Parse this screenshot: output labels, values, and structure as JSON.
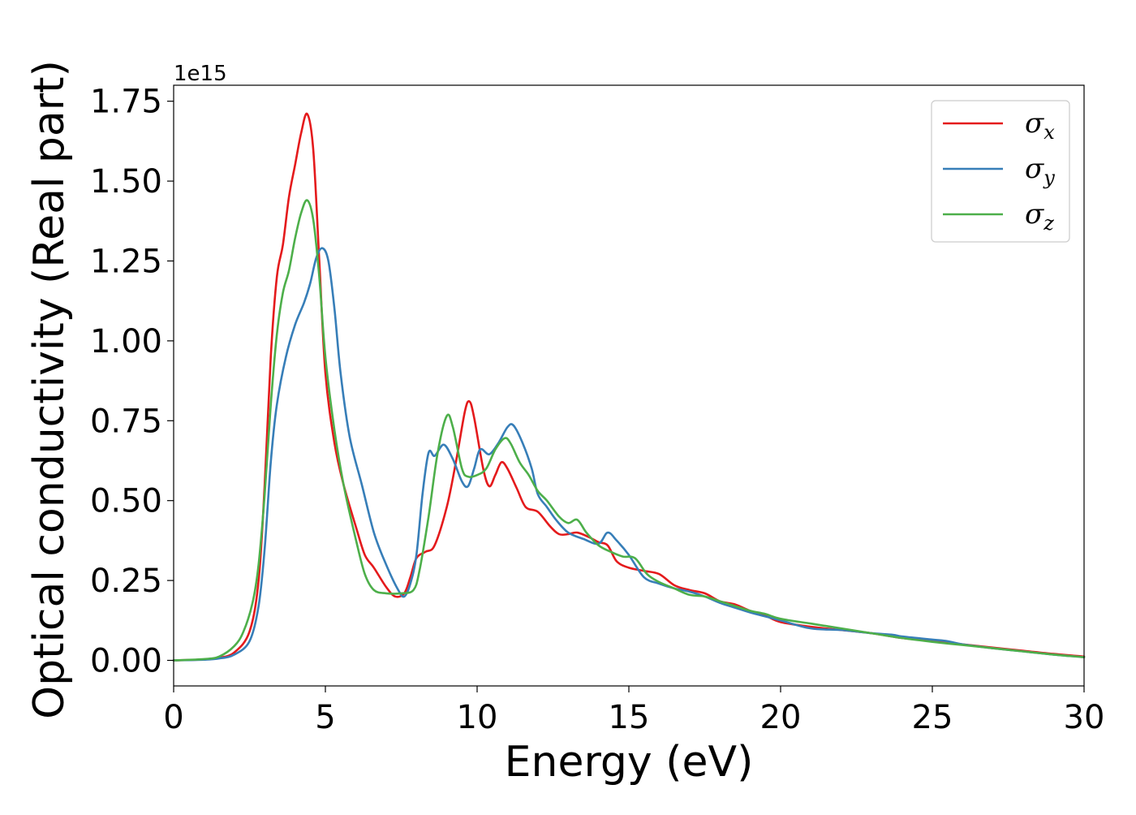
{
  "chart_data": {
    "type": "line",
    "title": "",
    "xlabel": "Energy (eV)",
    "ylabel": "Optical conductivity (Real part)",
    "y_offset_text": "1e15",
    "xlim": [
      0,
      30
    ],
    "ylim": [
      -0.08,
      1.8
    ],
    "x_ticks": [
      "0",
      "5",
      "10",
      "15",
      "20",
      "25",
      "30"
    ],
    "y_ticks": [
      "0.00",
      "0.25",
      "0.50",
      "0.75",
      "1.00",
      "1.25",
      "1.50",
      "1.75"
    ],
    "grid": false,
    "legend_position": "top-right",
    "series": [
      {
        "name": "σx",
        "legend_symbol": "σ",
        "legend_subscript": "x",
        "color": "#e41a1c",
        "points": [
          [
            0,
            0
          ],
          [
            1,
            0.003
          ],
          [
            1.5,
            0.008
          ],
          [
            2,
            0.025
          ],
          [
            2.5,
            0.09
          ],
          [
            2.8,
            0.25
          ],
          [
            3,
            0.55
          ],
          [
            3.2,
            0.95
          ],
          [
            3.4,
            1.2
          ],
          [
            3.6,
            1.3
          ],
          [
            3.8,
            1.45
          ],
          [
            4,
            1.55
          ],
          [
            4.2,
            1.65
          ],
          [
            4.4,
            1.71
          ],
          [
            4.6,
            1.6
          ],
          [
            4.8,
            1.25
          ],
          [
            5,
            0.9
          ],
          [
            5.3,
            0.68
          ],
          [
            5.6,
            0.55
          ],
          [
            6,
            0.42
          ],
          [
            6.3,
            0.33
          ],
          [
            6.6,
            0.29
          ],
          [
            7,
            0.23
          ],
          [
            7.3,
            0.2
          ],
          [
            7.6,
            0.21
          ],
          [
            7.8,
            0.26
          ],
          [
            8,
            0.32
          ],
          [
            8.3,
            0.34
          ],
          [
            8.6,
            0.36
          ],
          [
            9,
            0.48
          ],
          [
            9.3,
            0.62
          ],
          [
            9.6,
            0.78
          ],
          [
            9.75,
            0.81
          ],
          [
            9.9,
            0.76
          ],
          [
            10.2,
            0.6
          ],
          [
            10.4,
            0.545
          ],
          [
            10.6,
            0.58
          ],
          [
            10.8,
            0.62
          ],
          [
            11,
            0.6
          ],
          [
            11.3,
            0.54
          ],
          [
            11.6,
            0.48
          ],
          [
            12,
            0.465
          ],
          [
            12.4,
            0.42
          ],
          [
            12.7,
            0.395
          ],
          [
            13,
            0.395
          ],
          [
            13.3,
            0.4
          ],
          [
            13.7,
            0.385
          ],
          [
            14,
            0.37
          ],
          [
            14.3,
            0.36
          ],
          [
            14.6,
            0.31
          ],
          [
            15,
            0.29
          ],
          [
            15.5,
            0.28
          ],
          [
            16,
            0.27
          ],
          [
            16.5,
            0.235
          ],
          [
            17,
            0.22
          ],
          [
            17.5,
            0.21
          ],
          [
            18,
            0.185
          ],
          [
            18.5,
            0.175
          ],
          [
            19,
            0.155
          ],
          [
            19.5,
            0.14
          ],
          [
            20,
            0.12
          ],
          [
            21,
            0.105
          ],
          [
            22,
            0.095
          ],
          [
            23,
            0.085
          ],
          [
            24,
            0.07
          ],
          [
            25,
            0.06
          ],
          [
            26,
            0.05
          ],
          [
            27,
            0.04
          ],
          [
            28,
            0.03
          ],
          [
            29,
            0.02
          ],
          [
            30,
            0.012
          ]
        ]
      },
      {
        "name": "σy",
        "legend_symbol": "σ",
        "legend_subscript": "y",
        "color": "#377eb8",
        "points": [
          [
            0,
            0
          ],
          [
            1,
            0.002
          ],
          [
            1.5,
            0.006
          ],
          [
            2,
            0.018
          ],
          [
            2.5,
            0.06
          ],
          [
            2.8,
            0.17
          ],
          [
            3,
            0.35
          ],
          [
            3.2,
            0.62
          ],
          [
            3.4,
            0.8
          ],
          [
            3.7,
            0.95
          ],
          [
            4,
            1.05
          ],
          [
            4.3,
            1.12
          ],
          [
            4.5,
            1.18
          ],
          [
            4.7,
            1.26
          ],
          [
            4.9,
            1.29
          ],
          [
            5.1,
            1.25
          ],
          [
            5.3,
            1.1
          ],
          [
            5.5,
            0.9
          ],
          [
            5.8,
            0.7
          ],
          [
            6.2,
            0.55
          ],
          [
            6.6,
            0.4
          ],
          [
            7,
            0.3
          ],
          [
            7.4,
            0.22
          ],
          [
            7.6,
            0.2
          ],
          [
            7.8,
            0.24
          ],
          [
            8,
            0.33
          ],
          [
            8.2,
            0.52
          ],
          [
            8.4,
            0.65
          ],
          [
            8.6,
            0.64
          ],
          [
            8.9,
            0.675
          ],
          [
            9.2,
            0.63
          ],
          [
            9.5,
            0.56
          ],
          [
            9.7,
            0.545
          ],
          [
            9.9,
            0.6
          ],
          [
            10.1,
            0.66
          ],
          [
            10.4,
            0.645
          ],
          [
            10.7,
            0.68
          ],
          [
            11,
            0.73
          ],
          [
            11.2,
            0.735
          ],
          [
            11.5,
            0.68
          ],
          [
            11.8,
            0.6
          ],
          [
            12,
            0.52
          ],
          [
            12.3,
            0.48
          ],
          [
            12.6,
            0.44
          ],
          [
            13,
            0.4
          ],
          [
            13.5,
            0.38
          ],
          [
            14,
            0.365
          ],
          [
            14.3,
            0.4
          ],
          [
            14.6,
            0.375
          ],
          [
            15,
            0.33
          ],
          [
            15.5,
            0.26
          ],
          [
            16,
            0.24
          ],
          [
            16.5,
            0.225
          ],
          [
            17,
            0.215
          ],
          [
            17.5,
            0.2
          ],
          [
            18,
            0.18
          ],
          [
            18.5,
            0.165
          ],
          [
            19,
            0.15
          ],
          [
            20,
            0.125
          ],
          [
            21,
            0.1
          ],
          [
            22,
            0.095
          ],
          [
            23,
            0.085
          ],
          [
            23.7,
            0.08
          ],
          [
            24,
            0.075
          ],
          [
            25,
            0.065
          ],
          [
            25.5,
            0.06
          ],
          [
            26,
            0.05
          ],
          [
            27,
            0.038
          ],
          [
            28,
            0.028
          ],
          [
            29,
            0.018
          ],
          [
            30,
            0.01
          ]
        ]
      },
      {
        "name": "σz",
        "legend_symbol": "σ",
        "legend_subscript": "z",
        "color": "#4daf4a",
        "points": [
          [
            0,
            0
          ],
          [
            1,
            0.004
          ],
          [
            1.5,
            0.012
          ],
          [
            2,
            0.045
          ],
          [
            2.3,
            0.09
          ],
          [
            2.6,
            0.18
          ],
          [
            2.8,
            0.3
          ],
          [
            3,
            0.52
          ],
          [
            3.2,
            0.8
          ],
          [
            3.4,
            1.02
          ],
          [
            3.6,
            1.15
          ],
          [
            3.8,
            1.22
          ],
          [
            4,
            1.32
          ],
          [
            4.2,
            1.4
          ],
          [
            4.4,
            1.44
          ],
          [
            4.6,
            1.38
          ],
          [
            4.8,
            1.2
          ],
          [
            5,
            0.95
          ],
          [
            5.3,
            0.72
          ],
          [
            5.6,
            0.55
          ],
          [
            6,
            0.38
          ],
          [
            6.3,
            0.27
          ],
          [
            6.6,
            0.22
          ],
          [
            7,
            0.21
          ],
          [
            7.5,
            0.21
          ],
          [
            7.9,
            0.22
          ],
          [
            8.1,
            0.28
          ],
          [
            8.4,
            0.45
          ],
          [
            8.7,
            0.65
          ],
          [
            9,
            0.765
          ],
          [
            9.2,
            0.73
          ],
          [
            9.5,
            0.6
          ],
          [
            9.7,
            0.575
          ],
          [
            10,
            0.58
          ],
          [
            10.3,
            0.6
          ],
          [
            10.6,
            0.66
          ],
          [
            10.9,
            0.695
          ],
          [
            11.1,
            0.68
          ],
          [
            11.4,
            0.62
          ],
          [
            11.7,
            0.58
          ],
          [
            12,
            0.53
          ],
          [
            12.3,
            0.5
          ],
          [
            12.7,
            0.45
          ],
          [
            13,
            0.43
          ],
          [
            13.3,
            0.44
          ],
          [
            13.6,
            0.4
          ],
          [
            14,
            0.36
          ],
          [
            14.4,
            0.34
          ],
          [
            14.8,
            0.325
          ],
          [
            15.2,
            0.32
          ],
          [
            15.6,
            0.27
          ],
          [
            16,
            0.245
          ],
          [
            16.5,
            0.225
          ],
          [
            17,
            0.205
          ],
          [
            17.5,
            0.2
          ],
          [
            18,
            0.185
          ],
          [
            18.5,
            0.17
          ],
          [
            19,
            0.155
          ],
          [
            19.5,
            0.145
          ],
          [
            20,
            0.13
          ],
          [
            21,
            0.115
          ],
          [
            22,
            0.1
          ],
          [
            23,
            0.085
          ],
          [
            24,
            0.07
          ],
          [
            25,
            0.058
          ],
          [
            26,
            0.048
          ],
          [
            27,
            0.038
          ],
          [
            28,
            0.028
          ],
          [
            29,
            0.018
          ],
          [
            30,
            0.01
          ]
        ]
      }
    ]
  }
}
